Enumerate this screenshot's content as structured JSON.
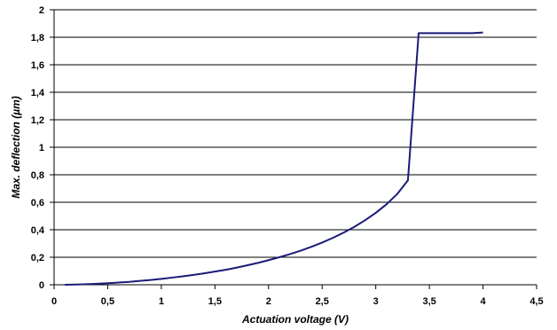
{
  "chart_data": {
    "type": "line",
    "title": "",
    "xlabel": "Actuation voltage (V)",
    "ylabel": "Max. deflection (µm)",
    "xlim": [
      0,
      4.5
    ],
    "ylim": [
      0,
      2
    ],
    "x_ticks": [
      "0",
      "0,5",
      "1",
      "1,5",
      "2",
      "2,5",
      "3",
      "3,5",
      "4",
      "4,5"
    ],
    "x_tick_values": [
      0,
      0.5,
      1,
      1.5,
      2,
      2.5,
      3,
      3.5,
      4,
      4.5
    ],
    "y_ticks": [
      "0",
      "0,2",
      "0,4",
      "0,6",
      "0,8",
      "1",
      "1,2",
      "1,4",
      "1,6",
      "1,8",
      "2"
    ],
    "y_tick_values": [
      0,
      0.2,
      0.4,
      0.6,
      0.8,
      1.0,
      1.2,
      1.4,
      1.6,
      1.8,
      2.0
    ],
    "grid": {
      "horizontal": true,
      "vertical": false
    },
    "legend": "none",
    "line_color": "#1b1b7a",
    "series": [
      {
        "x": [
          0.1,
          0.2,
          0.3,
          0.4,
          0.5,
          0.6,
          0.7,
          0.8,
          0.9,
          1.0,
          1.1,
          1.2,
          1.3,
          1.4,
          1.5,
          1.6,
          1.7,
          1.8,
          1.9,
          2.0,
          2.1,
          2.2,
          2.3,
          2.4,
          2.5,
          2.6,
          2.7,
          2.8,
          2.9,
          3.0,
          3.1,
          3.2,
          3.3,
          3.4,
          3.5,
          3.6,
          3.7,
          3.8,
          3.9,
          4.0
        ],
        "y": [
          0.0,
          0.002,
          0.004,
          0.007,
          0.011,
          0.016,
          0.021,
          0.028,
          0.035,
          0.043,
          0.052,
          0.061,
          0.072,
          0.083,
          0.096,
          0.109,
          0.124,
          0.141,
          0.159,
          0.179,
          0.2,
          0.223,
          0.248,
          0.276,
          0.307,
          0.341,
          0.379,
          0.421,
          0.469,
          0.523,
          0.585,
          0.66,
          0.76,
          1.83,
          1.83,
          1.83,
          1.83,
          1.83,
          1.83,
          1.835
        ]
      }
    ]
  }
}
